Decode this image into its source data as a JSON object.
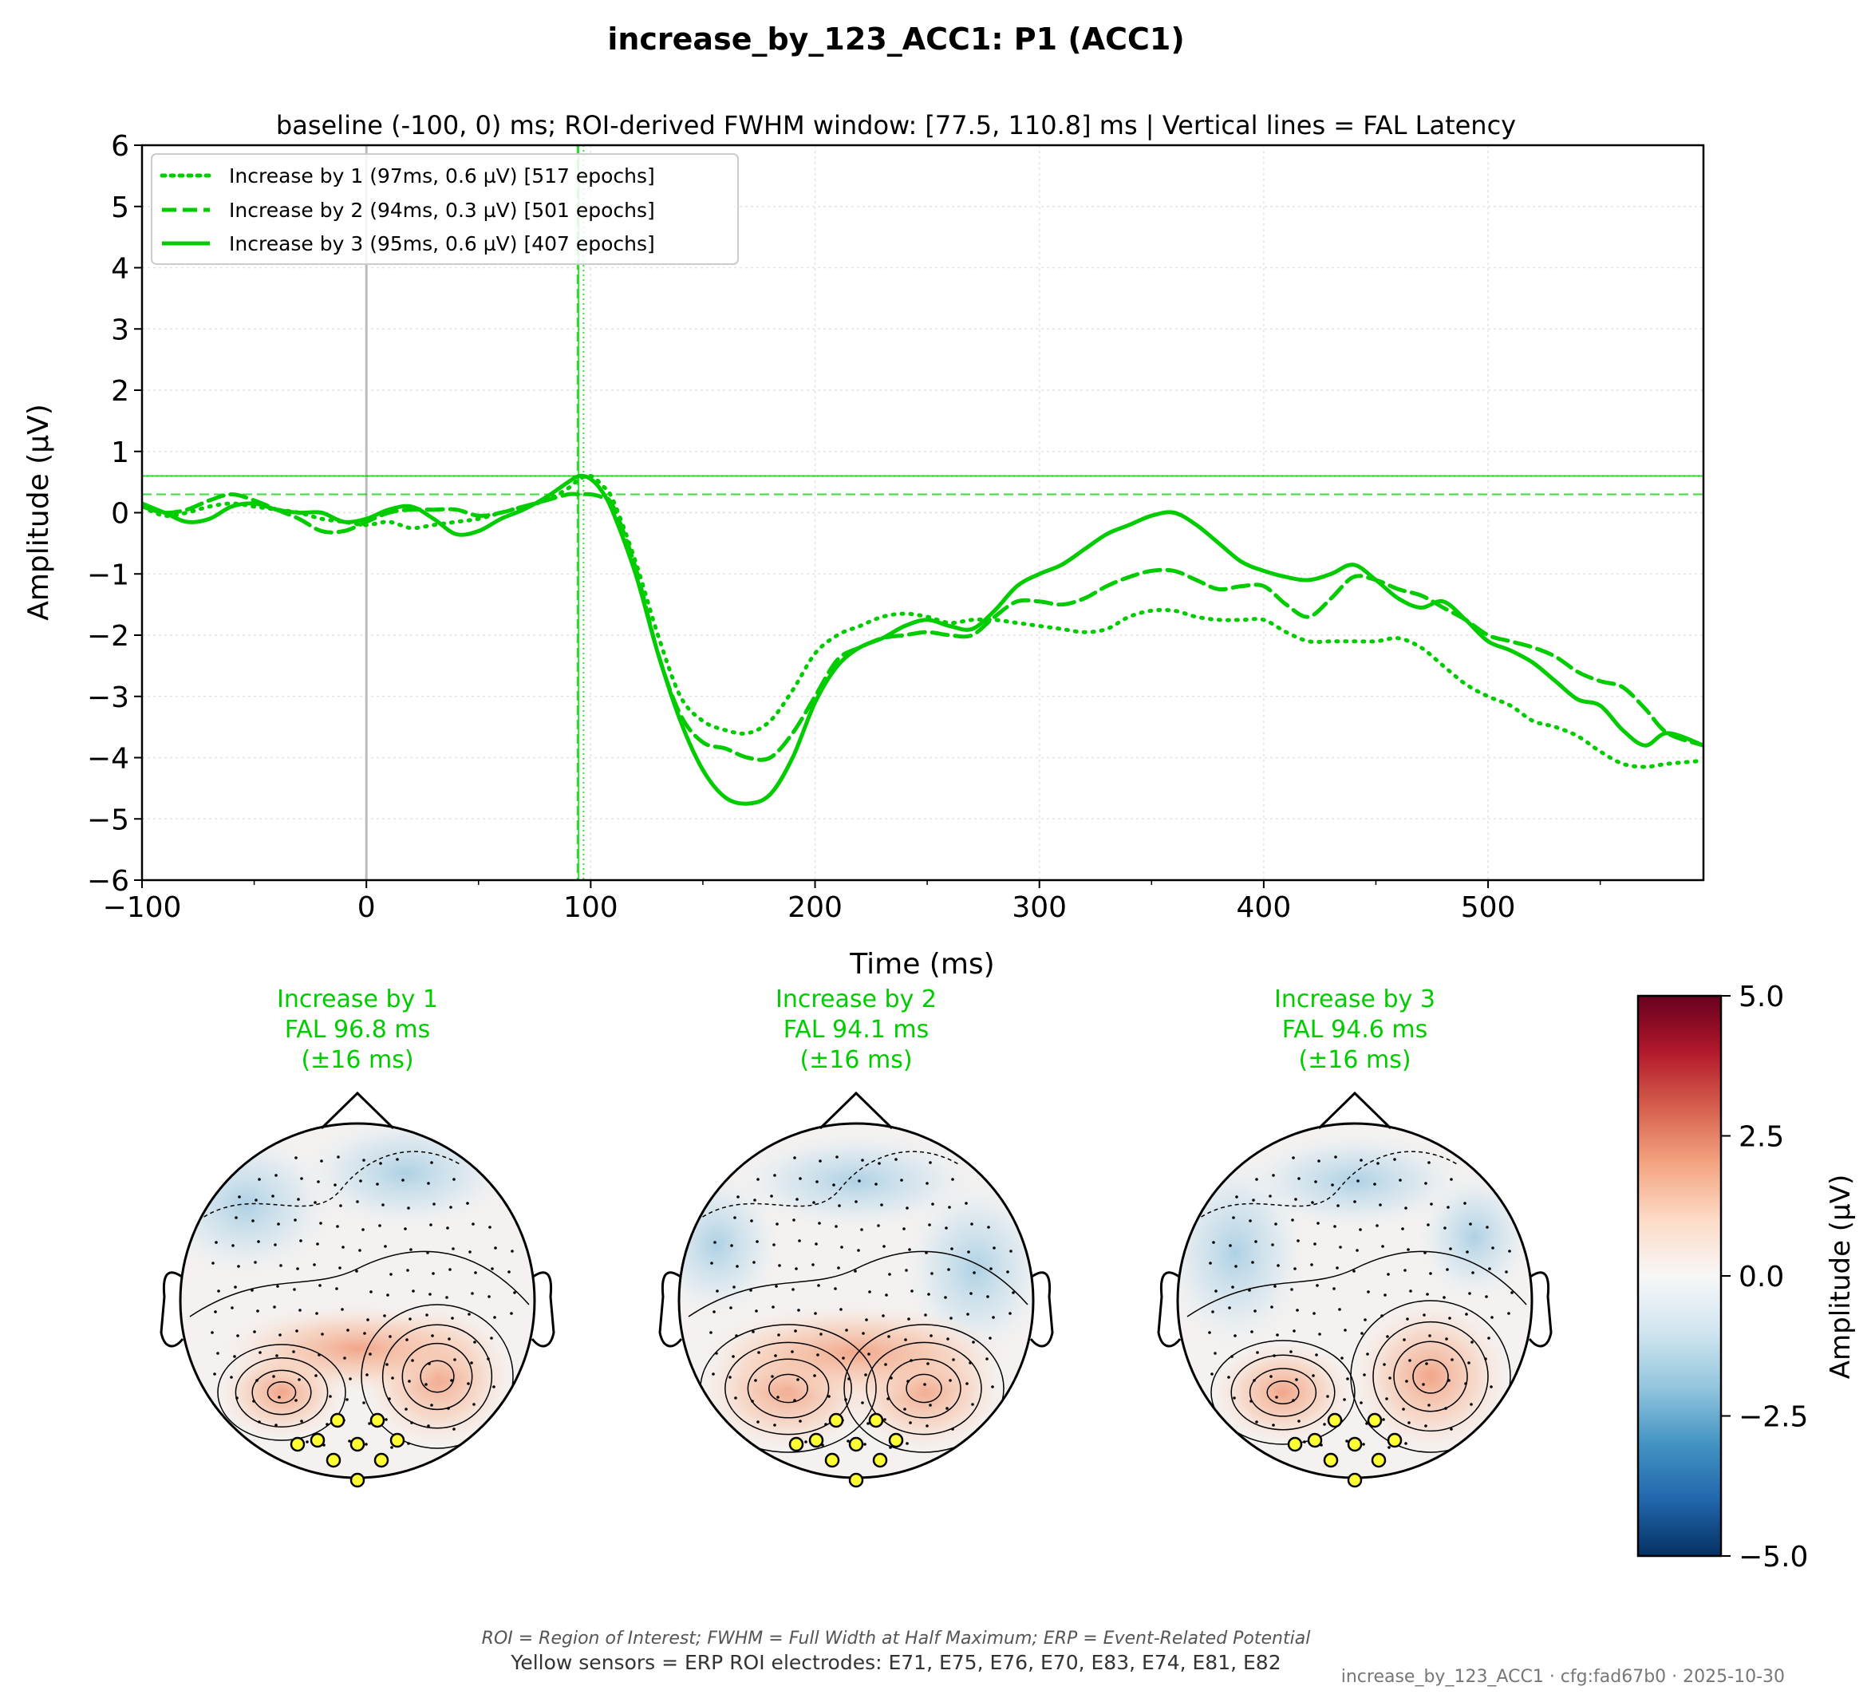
{
  "figure": {
    "title": "increase_by_123_ACC1: P1 (ACC1)",
    "footnote_abbrev": "ROI = Region of Interest; FWHM = Full Width at Half Maximum; ERP = Event-Related Potential",
    "footnote_sensors": "Yellow sensors = ERP ROI electrodes: E71, E75, E76, E70, E83, E74, E81, E82",
    "stamp": "increase_by_123_ACC1 · cfg:fad67b0 · 2025-10-30"
  },
  "chart_data": {
    "type": "line",
    "title": "baseline (-100, 0) ms; ROI-derived FWHM window: [77.5, 110.8] ms | Vertical lines = FAL Latency",
    "xlabel": "Time (ms)",
    "ylabel": "Amplitude (µV)",
    "xlim": [
      -100,
      596
    ],
    "ylim": [
      -6,
      6
    ],
    "xticks": [
      -100,
      0,
      100,
      200,
      300,
      400,
      500
    ],
    "xtick_labels": [
      "−100",
      "0",
      "100",
      "200",
      "300",
      "400",
      "500"
    ],
    "yticks": [
      -6,
      -5,
      -4,
      -3,
      -2,
      -1,
      0,
      1,
      2,
      3,
      4,
      5,
      6
    ],
    "ytick_labels": [
      "−6",
      "−5",
      "−4",
      "−3",
      "−2",
      "−1",
      "0",
      "1",
      "2",
      "3",
      "4",
      "5",
      "6"
    ],
    "grid": true,
    "legend_position": "top-left",
    "color": "#00cc00",
    "stimulus_onset_ms": 0,
    "series": [
      {
        "name": "Increase by 1 (97ms, 0.6 µV) [517 epochs]",
        "style": "dotted",
        "fal_ms": 96.8,
        "peak_uv": 0.6,
        "x": [
          -100,
          -90,
          -80,
          -70,
          -60,
          -50,
          -40,
          -30,
          -20,
          -10,
          0,
          10,
          20,
          30,
          40,
          50,
          60,
          70,
          80,
          90,
          95,
          100,
          105,
          110,
          120,
          130,
          140,
          150,
          160,
          170,
          180,
          190,
          200,
          210,
          220,
          230,
          240,
          250,
          260,
          270,
          280,
          290,
          300,
          310,
          320,
          330,
          340,
          350,
          360,
          370,
          380,
          390,
          400,
          410,
          420,
          430,
          440,
          450,
          460,
          470,
          480,
          490,
          500,
          510,
          520,
          530,
          540,
          550,
          560,
          570,
          580,
          596
        ],
        "y": [
          0.1,
          -0.05,
          0.0,
          0.1,
          0.15,
          0.1,
          0.05,
          0.0,
          -0.1,
          -0.15,
          -0.2,
          -0.15,
          -0.25,
          -0.2,
          -0.15,
          -0.1,
          0.0,
          0.1,
          0.2,
          0.4,
          0.55,
          0.6,
          0.45,
          0.2,
          -0.8,
          -2.0,
          -3.0,
          -3.4,
          -3.55,
          -3.6,
          -3.4,
          -2.9,
          -2.3,
          -2.0,
          -1.85,
          -1.7,
          -1.65,
          -1.7,
          -1.8,
          -1.75,
          -1.75,
          -1.8,
          -1.85,
          -1.9,
          -1.95,
          -1.9,
          -1.7,
          -1.6,
          -1.6,
          -1.7,
          -1.75,
          -1.75,
          -1.75,
          -1.95,
          -2.1,
          -2.1,
          -2.1,
          -2.1,
          -2.05,
          -2.2,
          -2.5,
          -2.8,
          -3.0,
          -3.15,
          -3.4,
          -3.5,
          -3.65,
          -3.9,
          -4.1,
          -4.15,
          -4.1,
          -4.05
        ]
      },
      {
        "name": "Increase by 2 (94ms, 0.3 µV) [501 epochs]",
        "style": "dashed",
        "fal_ms": 94.1,
        "peak_uv": 0.3,
        "x": [
          -100,
          -90,
          -80,
          -70,
          -60,
          -50,
          -40,
          -30,
          -20,
          -10,
          0,
          10,
          20,
          30,
          40,
          50,
          60,
          70,
          80,
          90,
          95,
          100,
          105,
          110,
          120,
          130,
          140,
          150,
          160,
          170,
          180,
          190,
          200,
          210,
          220,
          230,
          240,
          250,
          260,
          270,
          280,
          290,
          300,
          310,
          320,
          330,
          340,
          350,
          360,
          370,
          380,
          390,
          400,
          410,
          420,
          430,
          440,
          450,
          460,
          470,
          480,
          490,
          500,
          510,
          520,
          530,
          540,
          550,
          560,
          570,
          580,
          596
        ],
        "y": [
          0.1,
          0.0,
          0.05,
          0.2,
          0.3,
          0.2,
          0.05,
          -0.1,
          -0.3,
          -0.3,
          -0.15,
          0.0,
          0.05,
          0.05,
          0.05,
          -0.05,
          0.0,
          0.1,
          0.2,
          0.3,
          0.3,
          0.3,
          0.25,
          0.1,
          -0.9,
          -2.3,
          -3.3,
          -3.75,
          -3.85,
          -4.0,
          -4.0,
          -3.6,
          -3.0,
          -2.4,
          -2.2,
          -2.05,
          -2.0,
          -1.95,
          -2.0,
          -2.0,
          -1.7,
          -1.45,
          -1.45,
          -1.5,
          -1.4,
          -1.2,
          -1.05,
          -0.95,
          -0.95,
          -1.1,
          -1.25,
          -1.2,
          -1.2,
          -1.5,
          -1.7,
          -1.4,
          -1.05,
          -1.1,
          -1.25,
          -1.35,
          -1.55,
          -1.75,
          -2.0,
          -2.1,
          -2.2,
          -2.35,
          -2.6,
          -2.75,
          -2.85,
          -3.2,
          -3.6,
          -3.8
        ]
      },
      {
        "name": "Increase by 3 (95ms, 0.6 µV) [407 epochs]",
        "style": "solid",
        "fal_ms": 94.6,
        "peak_uv": 0.6,
        "x": [
          -100,
          -90,
          -80,
          -70,
          -60,
          -50,
          -40,
          -30,
          -20,
          -10,
          0,
          10,
          20,
          30,
          40,
          50,
          60,
          70,
          80,
          90,
          95,
          100,
          105,
          110,
          120,
          130,
          140,
          150,
          160,
          170,
          180,
          190,
          200,
          210,
          220,
          230,
          240,
          250,
          260,
          270,
          280,
          290,
          300,
          310,
          320,
          330,
          340,
          350,
          360,
          370,
          380,
          390,
          400,
          410,
          420,
          430,
          440,
          450,
          460,
          470,
          480,
          490,
          500,
          510,
          520,
          530,
          540,
          550,
          560,
          570,
          580,
          596
        ],
        "y": [
          0.15,
          0.0,
          -0.15,
          -0.1,
          0.1,
          0.15,
          0.05,
          0.0,
          0.0,
          -0.15,
          -0.1,
          0.05,
          0.1,
          -0.1,
          -0.35,
          -0.3,
          -0.1,
          0.05,
          0.25,
          0.5,
          0.6,
          0.55,
          0.35,
          0.0,
          -1.0,
          -2.3,
          -3.4,
          -4.2,
          -4.65,
          -4.75,
          -4.6,
          -4.0,
          -3.1,
          -2.5,
          -2.2,
          -2.05,
          -1.85,
          -1.75,
          -1.85,
          -1.9,
          -1.6,
          -1.2,
          -1.0,
          -0.85,
          -0.6,
          -0.35,
          -0.2,
          -0.05,
          0.0,
          -0.2,
          -0.5,
          -0.8,
          -0.95,
          -1.05,
          -1.1,
          -1.0,
          -0.85,
          -1.1,
          -1.4,
          -1.55,
          -1.45,
          -1.75,
          -2.1,
          -2.25,
          -2.45,
          -2.75,
          -3.05,
          -3.15,
          -3.55,
          -3.8,
          -3.6,
          -3.8
        ]
      }
    ],
    "reference_lines": {
      "vertical_fal_ms": [
        96.8,
        94.1,
        94.6
      ],
      "horizontal_peak_uv": [
        0.6,
        0.3,
        0.6
      ]
    }
  },
  "topomaps": [
    {
      "title_lines": [
        "Increase by 1",
        "FAL 96.8 ms",
        "(±16 ms)"
      ]
    },
    {
      "title_lines": [
        "Increase by 2",
        "FAL 94.1 ms",
        "(±16 ms)"
      ]
    },
    {
      "title_lines": [
        "Increase by 3",
        "FAL 94.6 ms",
        "(±16 ms)"
      ]
    }
  ],
  "colorbar": {
    "label": "Amplitude (µV)",
    "range": [
      -5.0,
      5.0
    ],
    "ticks": [
      5.0,
      2.5,
      0.0,
      -2.5,
      -5.0
    ],
    "tick_labels": [
      "5.0",
      "2.5",
      "0.0",
      "−2.5",
      "−5.0"
    ],
    "colormap": "RdBu_r",
    "colors": [
      "#053061",
      "#2166ac",
      "#4393c3",
      "#92c5de",
      "#d1e5f0",
      "#f7f7f7",
      "#fddbc7",
      "#f4a582",
      "#d6604d",
      "#b2182b",
      "#67001f"
    ]
  },
  "roi_electrodes": [
    "E71",
    "E75",
    "E76",
    "E70",
    "E83",
    "E74",
    "E81",
    "E82"
  ],
  "roi_sensor_color": "#ffff33"
}
